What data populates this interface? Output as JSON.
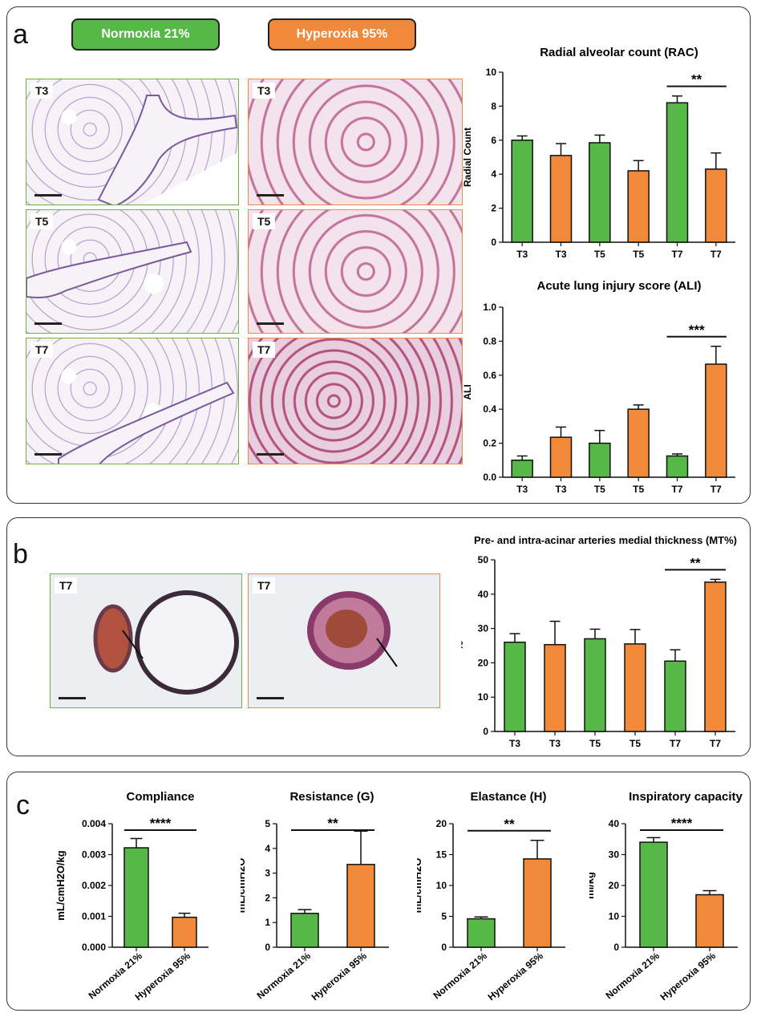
{
  "legend": {
    "normoxia": "Normoxia 21%",
    "hyperoxia": "Hyperoxia 95%"
  },
  "colors": {
    "normoxia": "#56b947",
    "hyperoxia": "#f0893a"
  },
  "panel_labels": {
    "a": "a",
    "b": "b",
    "c": "c"
  },
  "micrographs": {
    "a_tags": [
      "T3",
      "T3",
      "T5",
      "T5",
      "T7",
      "T7"
    ],
    "b_tags": [
      "T7",
      "T7"
    ]
  },
  "chart_data": [
    {
      "id": "rac",
      "type": "bar",
      "title": "Radial alveolar count (RAC)",
      "ylabel": "Radial Count",
      "categories": [
        "T3",
        "T3",
        "T5",
        "T5",
        "T7",
        "T7"
      ],
      "groups": [
        "normoxia",
        "hyperoxia",
        "normoxia",
        "hyperoxia",
        "normoxia",
        "hyperoxia"
      ],
      "values": [
        6.0,
        5.1,
        5.85,
        4.2,
        8.2,
        4.3
      ],
      "errors": [
        0.25,
        0.7,
        0.45,
        0.6,
        0.4,
        0.95
      ],
      "ylim": [
        0,
        10
      ],
      "yticks": [
        "0",
        "2",
        "4",
        "6",
        "8",
        "10"
      ],
      "significance": {
        "from": 4,
        "to": 5,
        "label": "**"
      }
    },
    {
      "id": "ali",
      "type": "bar",
      "title": "Acute lung injury score (ALI)",
      "ylabel": "ALI",
      "categories": [
        "T3",
        "T3",
        "T5",
        "T5",
        "T7",
        "T7"
      ],
      "groups": [
        "normoxia",
        "hyperoxia",
        "normoxia",
        "hyperoxia",
        "normoxia",
        "hyperoxia"
      ],
      "values": [
        0.1,
        0.235,
        0.2,
        0.4,
        0.125,
        0.665
      ],
      "errors": [
        0.025,
        0.06,
        0.075,
        0.025,
        0.012,
        0.105
      ],
      "ylim": [
        0,
        1.0
      ],
      "yticks": [
        "0.0",
        "0.2",
        "0.4",
        "0.6",
        "0.8",
        "1.0"
      ],
      "significance": {
        "from": 4,
        "to": 5,
        "label": "***"
      }
    },
    {
      "id": "mt",
      "type": "bar",
      "title": "Pre- and intra-acinar arteries medial thickness (MT%)",
      "ylabel": "%",
      "categories": [
        "T3",
        "T3",
        "T5",
        "T5",
        "T7",
        "T7"
      ],
      "groups": [
        "normoxia",
        "hyperoxia",
        "normoxia",
        "hyperoxia",
        "normoxia",
        "hyperoxia"
      ],
      "values": [
        26.0,
        25.3,
        27.0,
        25.5,
        20.5,
        43.5
      ],
      "errors": [
        2.5,
        6.8,
        2.8,
        4.2,
        3.3,
        0.8
      ],
      "ylim": [
        0,
        50
      ],
      "yticks": [
        "0",
        "10",
        "20",
        "30",
        "40",
        "50"
      ],
      "significance": {
        "from": 4,
        "to": 5,
        "label": "**"
      }
    },
    {
      "id": "compliance",
      "type": "bar",
      "title": "Compliance",
      "ylabel": "mL/cmH2O/kg",
      "categories": [
        "Normoxia 21%",
        "Hyperoxia 95%"
      ],
      "groups": [
        "normoxia",
        "hyperoxia"
      ],
      "values": [
        0.00322,
        0.00097
      ],
      "errors": [
        0.0003,
        0.00013
      ],
      "ylim": [
        0,
        0.004
      ],
      "yticks": [
        "0.000",
        "0.001",
        "0.002",
        "0.003",
        "0.004"
      ],
      "significance": {
        "from": 0,
        "to": 1,
        "label": "****"
      }
    },
    {
      "id": "resistance",
      "type": "bar",
      "title": "Resistance (G)",
      "ylabel": "mL/cmH2O",
      "categories": [
        "Normoxia 21%",
        "Hyperoxia 95%"
      ],
      "groups": [
        "normoxia",
        "hyperoxia"
      ],
      "values": [
        1.37,
        3.35
      ],
      "errors": [
        0.15,
        1.35
      ],
      "ylim": [
        0,
        5
      ],
      "yticks": [
        "0",
        "1",
        "2",
        "3",
        "4",
        "5"
      ],
      "significance": {
        "from": 0,
        "to": 1,
        "label": "**"
      }
    },
    {
      "id": "elastance",
      "type": "bar",
      "title": "Elastance (H)",
      "ylabel": "mL/cmH2O",
      "categories": [
        "Normoxia 21%",
        "Hyperoxia 95%"
      ],
      "groups": [
        "normoxia",
        "hyperoxia"
      ],
      "values": [
        4.6,
        14.3
      ],
      "errors": [
        0.3,
        3.0
      ],
      "ylim": [
        0,
        20
      ],
      "yticks": [
        "0",
        "5",
        "10",
        "15",
        "20"
      ],
      "significance": {
        "from": 0,
        "to": 1,
        "label": "**"
      }
    },
    {
      "id": "ic",
      "type": "bar",
      "title": "Inspiratory capacity",
      "ylabel": "ml/kg",
      "categories": [
        "Normoxia 21%",
        "Hyperoxia 95%"
      ],
      "groups": [
        "normoxia",
        "hyperoxia"
      ],
      "values": [
        34.0,
        17.0
      ],
      "errors": [
        1.5,
        1.3
      ],
      "ylim": [
        0,
        40
      ],
      "yticks": [
        "0",
        "10",
        "20",
        "30",
        "40"
      ],
      "significance": {
        "from": 0,
        "to": 1,
        "label": "****"
      }
    }
  ]
}
